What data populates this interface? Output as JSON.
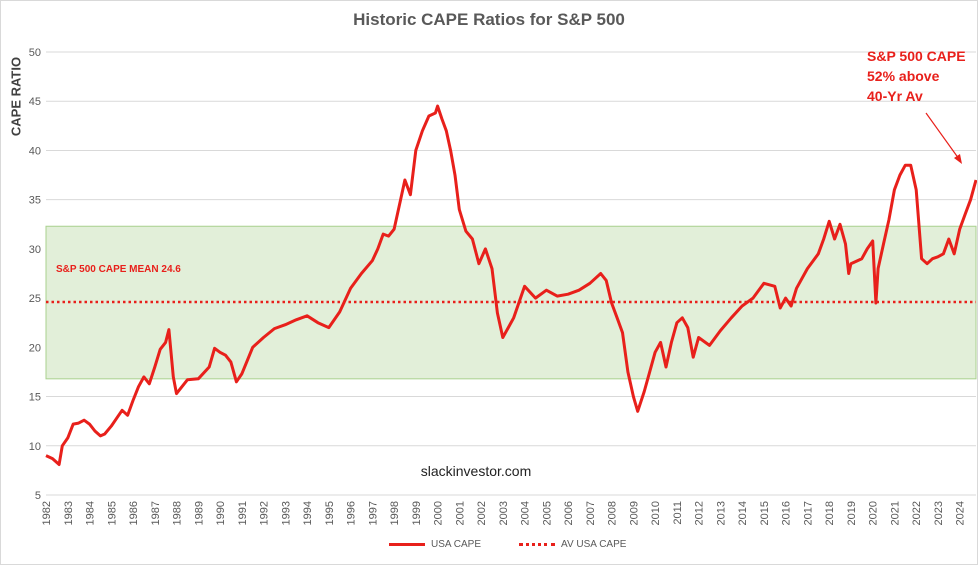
{
  "chart_data": {
    "type": "line",
    "title": "Historic CAPE Ratios for S&P 500",
    "ylabel": "CAPE RATIO",
    "xlabel": "",
    "ylim": [
      5,
      50
    ],
    "yticks": [
      5,
      10,
      15,
      20,
      25,
      30,
      35,
      40,
      45,
      50
    ],
    "xlim": [
      1982,
      2024.75
    ],
    "xticks": [
      1982,
      1983,
      1984,
      1985,
      1986,
      1987,
      1988,
      1989,
      1990,
      1991,
      1992,
      1993,
      1994,
      1995,
      1996,
      1997,
      1998,
      1999,
      2000,
      2001,
      2002,
      2003,
      2004,
      2005,
      2006,
      2007,
      2008,
      2009,
      2010,
      2011,
      2012,
      2013,
      2014,
      2015,
      2016,
      2017,
      2018,
      2019,
      2020,
      2021,
      2022,
      2023,
      2024
    ],
    "grid": "horizontal",
    "legend": "bottom",
    "band": {
      "low": 16.8,
      "high": 32.3,
      "color": "#e2efd9",
      "border": "#a9d18e"
    },
    "mean_label": "S&P 500 CAPE MEAN 24.6",
    "watermark": "slackinvestor.com",
    "annotation": [
      "S&P 500 CAPE",
      "52% above",
      "40-Yr Av"
    ],
    "series": [
      {
        "name": "USA CAPE",
        "color": "#e8201b",
        "style": "solid",
        "x": [
          1982.0,
          1982.3,
          1982.6,
          1982.75,
          1983.0,
          1983.25,
          1983.5,
          1983.75,
          1984.0,
          1984.25,
          1984.5,
          1984.7,
          1985.0,
          1985.25,
          1985.5,
          1985.75,
          1986.0,
          1986.25,
          1986.5,
          1986.75,
          1987.0,
          1987.25,
          1987.5,
          1987.65,
          1987.85,
          1988.0,
          1988.5,
          1989.0,
          1989.5,
          1989.75,
          1990.0,
          1990.25,
          1990.5,
          1990.75,
          1991.0,
          1991.5,
          1992.0,
          1992.5,
          1993.0,
          1993.5,
          1994.0,
          1994.5,
          1995.0,
          1995.5,
          1996.0,
          1996.5,
          1997.0,
          1997.25,
          1997.5,
          1997.75,
          1998.0,
          1998.3,
          1998.5,
          1998.75,
          1999.0,
          1999.3,
          1999.6,
          1999.9,
          2000.0,
          2000.2,
          2000.4,
          2000.6,
          2000.8,
          2001.0,
          2001.3,
          2001.6,
          2001.9,
          2002.2,
          2002.5,
          2002.75,
          2003.0,
          2003.25,
          2003.5,
          2004.0,
          2004.5,
          2005.0,
          2005.5,
          2006.0,
          2006.5,
          2007.0,
          2007.5,
          2007.75,
          2008.0,
          2008.25,
          2008.5,
          2008.75,
          2009.0,
          2009.2,
          2009.5,
          2009.75,
          2010.0,
          2010.25,
          2010.5,
          2010.75,
          2011.0,
          2011.25,
          2011.5,
          2011.75,
          2012.0,
          2012.5,
          2013.0,
          2013.5,
          2014.0,
          2014.5,
          2015.0,
          2015.5,
          2015.75,
          2016.0,
          2016.25,
          2016.5,
          2017.0,
          2017.5,
          2017.75,
          2018.0,
          2018.25,
          2018.5,
          2018.75,
          2018.9,
          2019.0,
          2019.5,
          2019.75,
          2020.0,
          2020.15,
          2020.25,
          2020.5,
          2020.75,
          2021.0,
          2021.25,
          2021.5,
          2021.75,
          2022.0,
          2022.25,
          2022.5,
          2022.75,
          2023.0,
          2023.25,
          2023.5,
          2023.75,
          2024.0,
          2024.25,
          2024.5,
          2024.75
        ],
        "values": [
          9.0,
          8.7,
          8.1,
          10.0,
          10.8,
          12.2,
          12.3,
          12.6,
          12.2,
          11.5,
          11.0,
          11.2,
          12.0,
          12.8,
          13.6,
          13.1,
          14.6,
          16.0,
          17.0,
          16.3,
          18.0,
          19.8,
          20.5,
          21.8,
          17.0,
          15.3,
          16.7,
          16.8,
          18.0,
          19.9,
          19.5,
          19.2,
          18.5,
          16.5,
          17.3,
          20.0,
          21.0,
          21.9,
          22.3,
          22.8,
          23.2,
          22.5,
          22.0,
          23.6,
          26.0,
          27.5,
          28.8,
          30.0,
          31.5,
          31.3,
          32.0,
          35.0,
          37.0,
          35.5,
          40.0,
          42.0,
          43.5,
          43.8,
          44.5,
          43.2,
          42.0,
          40.0,
          37.5,
          34.0,
          31.8,
          31.0,
          28.5,
          30.0,
          28.0,
          23.5,
          21.0,
          22.0,
          23.0,
          26.2,
          25.0,
          25.8,
          25.2,
          25.4,
          25.8,
          26.5,
          27.5,
          26.8,
          24.5,
          23.0,
          21.5,
          17.5,
          15.0,
          13.5,
          15.5,
          17.5,
          19.5,
          20.5,
          18.0,
          20.5,
          22.5,
          23.0,
          22.0,
          19.0,
          21.0,
          20.2,
          21.7,
          23.0,
          24.2,
          25.0,
          26.5,
          26.2,
          24.0,
          25.0,
          24.2,
          26.0,
          28.0,
          29.5,
          31.0,
          32.8,
          31.0,
          32.5,
          30.5,
          27.5,
          28.5,
          29.0,
          30.0,
          30.8,
          24.5,
          28.0,
          30.5,
          33.0,
          36.0,
          37.5,
          38.5,
          38.5,
          36.0,
          29.0,
          28.5,
          29.0,
          29.2,
          29.5,
          31.0,
          29.5,
          32.0,
          33.5,
          35.0,
          37.0
        ]
      },
      {
        "name": "AV USA CAPE",
        "color": "#e8201b",
        "style": "dotted",
        "x": [
          1982.0,
          2024.75
        ],
        "values": [
          24.6,
          24.6
        ]
      }
    ]
  }
}
